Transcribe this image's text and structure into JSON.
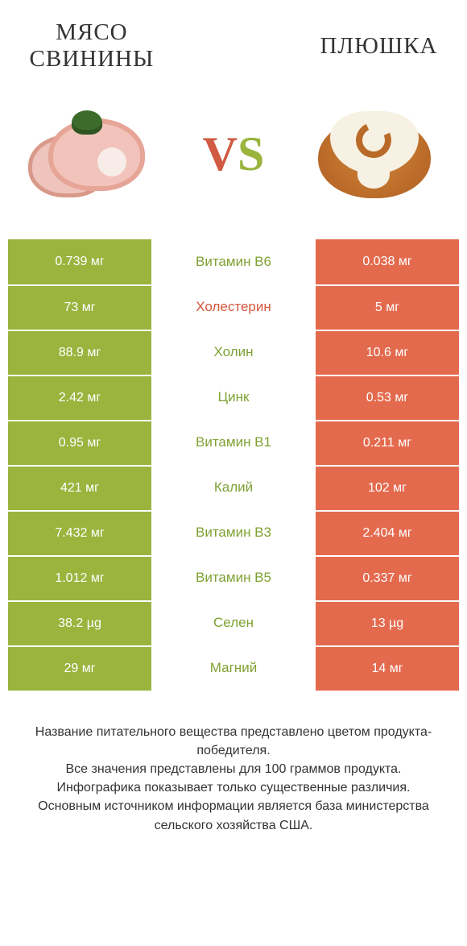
{
  "colors": {
    "green": "#9ab43e",
    "orange": "#e46a4e",
    "green_text": "#7fa133",
    "orange_text": "#d5563c"
  },
  "header": {
    "left_title": "МЯСО\nСВИНИНЫ",
    "right_title": "ПЛЮШКА",
    "vs_v": "V",
    "vs_s": "S"
  },
  "rows": [
    {
      "left": "0.739 мг",
      "label": "Витамин B6",
      "right": "0.038 мг",
      "winner": "left"
    },
    {
      "left": "73 мг",
      "label": "Холестерин",
      "right": "5 мг",
      "winner": "right"
    },
    {
      "left": "88.9 мг",
      "label": "Холин",
      "right": "10.6 мг",
      "winner": "left"
    },
    {
      "left": "2.42 мг",
      "label": "Цинк",
      "right": "0.53 мг",
      "winner": "left"
    },
    {
      "left": "0.95 мг",
      "label": "Витамин B1",
      "right": "0.211 мг",
      "winner": "left"
    },
    {
      "left": "421 мг",
      "label": "Калий",
      "right": "102 мг",
      "winner": "left"
    },
    {
      "left": "7.432 мг",
      "label": "Витамин B3",
      "right": "2.404 мг",
      "winner": "left"
    },
    {
      "left": "1.012 мг",
      "label": "Витамин B5",
      "right": "0.337 мг",
      "winner": "left"
    },
    {
      "left": "38.2 µg",
      "label": "Селен",
      "right": "13 µg",
      "winner": "left"
    },
    {
      "left": "29 мг",
      "label": "Магний",
      "right": "14 мг",
      "winner": "left"
    }
  ],
  "footer": {
    "line1": "Название питательного вещества представлено цветом продукта-победителя.",
    "line2": "Все значения представлены для 100 граммов продукта.",
    "line3": "Инфографика показывает только существенные различия.",
    "line4": "Основным источником информации является база министерства сельского хозяйства США."
  }
}
